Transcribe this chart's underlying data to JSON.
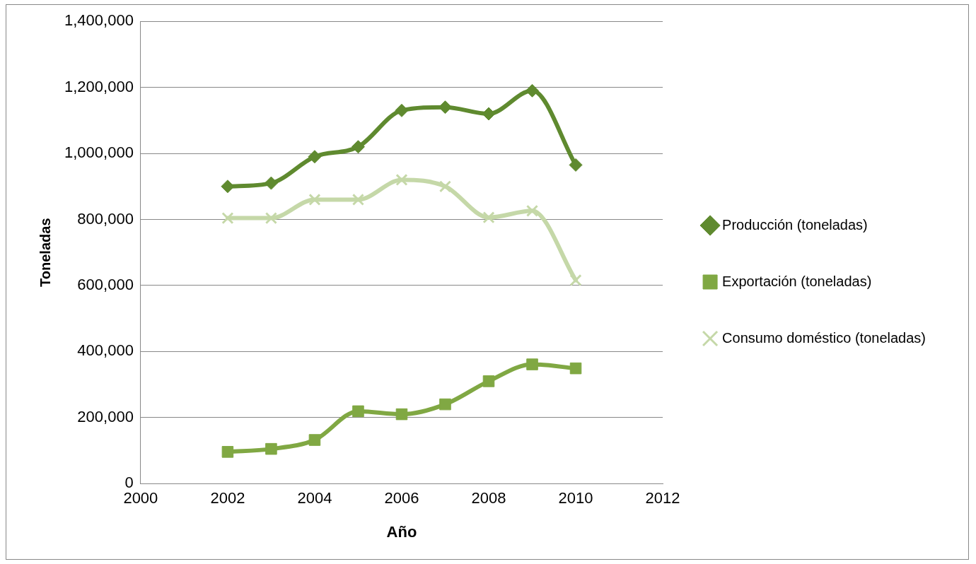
{
  "chart_data": {
    "type": "line",
    "xlabel": "Año",
    "ylabel": "Toneladas",
    "x": [
      2002,
      2003,
      2004,
      2005,
      2006,
      2007,
      2008,
      2009,
      2010
    ],
    "series": [
      {
        "name": "Producción (toneladas)",
        "color": "#5f8a2f",
        "marker": "diamond",
        "values": [
          900000,
          910000,
          990000,
          1020000,
          1130000,
          1140000,
          1120000,
          1190000,
          965000
        ]
      },
      {
        "name": "Exportación (toneladas)",
        "color": "#80a843",
        "marker": "square",
        "values": [
          96000,
          105000,
          132000,
          219000,
          210000,
          240000,
          310000,
          361000,
          349000
        ]
      },
      {
        "name": "Consumo doméstico (toneladas)",
        "color": "#c5d8a8",
        "marker": "cross",
        "values": [
          804000,
          804000,
          860000,
          860000,
          920000,
          900000,
          806000,
          826000,
          616000
        ]
      }
    ],
    "xlim": [
      2000,
      2012
    ],
    "xticks": [
      2000,
      2002,
      2004,
      2006,
      2008,
      2010,
      2012
    ],
    "ylim": [
      0,
      1400000
    ],
    "yticks": [
      0,
      {
        "value": 200000,
        "label": "200,000"
      },
      {
        "value": 400000,
        "label": "400,000"
      },
      {
        "value": 600000,
        "label": "600,000"
      },
      {
        "value": 800000,
        "label": "800,000"
      },
      {
        "value": 1000000,
        "label": "1,000,000"
      },
      {
        "value": 1200000,
        "label": "1,200,000"
      },
      {
        "value": 1400000,
        "label": "1,400,000"
      }
    ],
    "grid": "y",
    "legend": "right"
  }
}
